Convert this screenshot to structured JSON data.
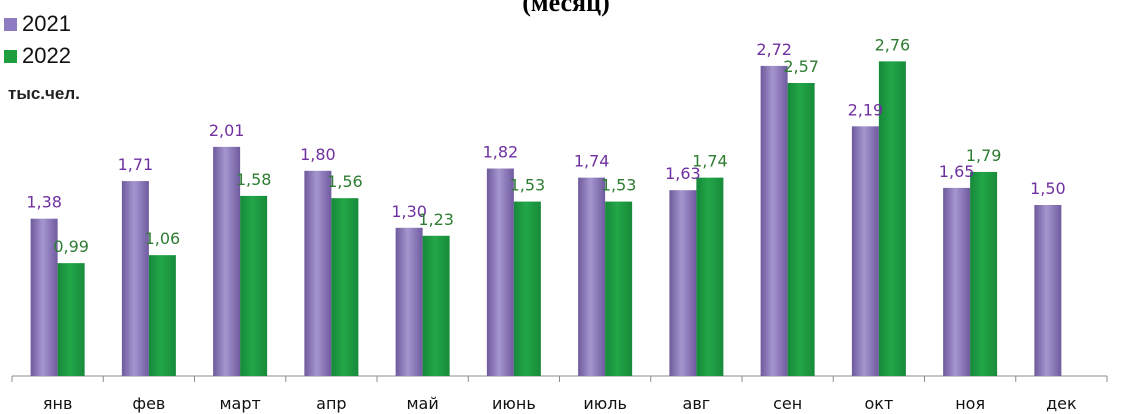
{
  "chart_data": {
    "type": "bar",
    "title": "(месяц)",
    "ylabel": "тыс.чел.",
    "ylim": [
      0,
      3
    ],
    "grid": false,
    "legend_position": "top-left",
    "categories": [
      "янв",
      "фев",
      "март",
      "апр",
      "май",
      "июнь",
      "июль",
      "авг",
      "сен",
      "окт",
      "ноя",
      "дек"
    ],
    "series": [
      {
        "name": "2021",
        "color": "#8E7CC3",
        "label_color": "#7030A0",
        "values": [
          1.38,
          1.71,
          2.01,
          1.8,
          1.3,
          1.82,
          1.74,
          1.63,
          2.72,
          2.19,
          1.65,
          1.5
        ],
        "labels": [
          "1,38",
          "1,71",
          "2,01",
          "1,80",
          "1,30",
          "1,82",
          "1,74",
          "1,63",
          "2,72",
          "2,19",
          "1,65",
          "1,50"
        ]
      },
      {
        "name": "2022",
        "color": "#1E9E3E",
        "label_color": "#2E7D32",
        "values": [
          0.99,
          1.06,
          1.58,
          1.56,
          1.23,
          1.53,
          1.53,
          1.74,
          2.57,
          2.76,
          1.79,
          null
        ],
        "labels": [
          "0,99",
          "1,06",
          "1,58",
          "1,56",
          "1,23",
          "1,53",
          "1,53",
          "1,74",
          "2,57",
          "2,76",
          "1,79",
          ""
        ]
      }
    ]
  }
}
